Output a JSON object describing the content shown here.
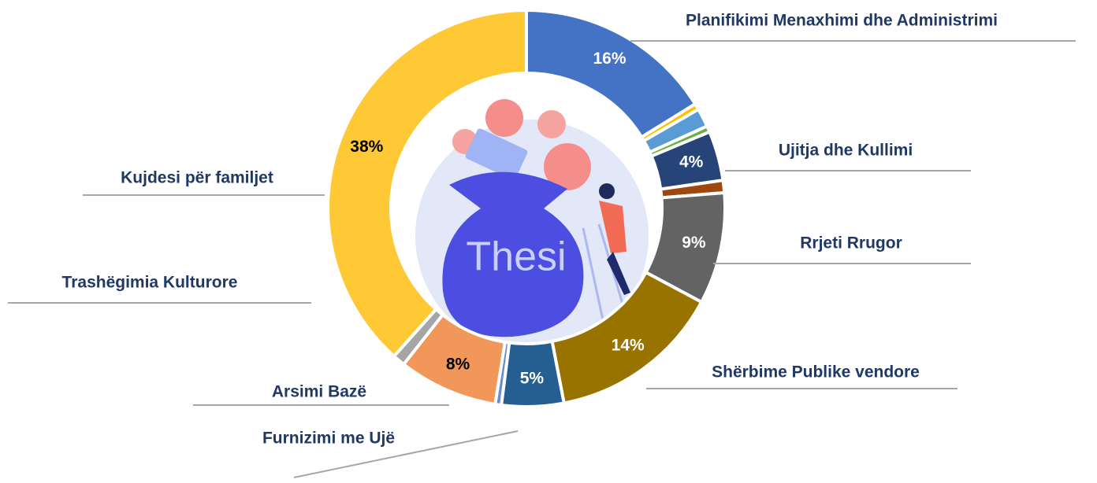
{
  "chart_data": {
    "type": "donut",
    "center_label": "Thesi",
    "categories": [
      "Planifikimi Menaxhimi dhe Administrimi",
      null,
      null,
      null,
      "Ujitja dhe Kullimi",
      null,
      "Rrjeti Rrugor",
      "Shërbime Publike vendore",
      "Furnizimi me Ujë",
      null,
      "Arsimi Bazë",
      "Trashëgimia Kulturore",
      "Kujdesi për familjet"
    ],
    "values": [
      16,
      0.5,
      1.5,
      0.5,
      4,
      1,
      9,
      14,
      5,
      0.5,
      8,
      1,
      38
    ],
    "value_labels": [
      "16%",
      null,
      null,
      null,
      "4%",
      null,
      "9%",
      "14%",
      "5%",
      null,
      "8%",
      null,
      "38%"
    ],
    "colors": [
      "#4472c4",
      "#ffc000",
      "#5b9bd5",
      "#70ad47",
      "#264478",
      "#9e480e",
      "#636363",
      "#997300",
      "#255e91",
      "#698ed0",
      "#f1975a",
      "#a5a5a5",
      "#ffc935"
    ]
  }
}
